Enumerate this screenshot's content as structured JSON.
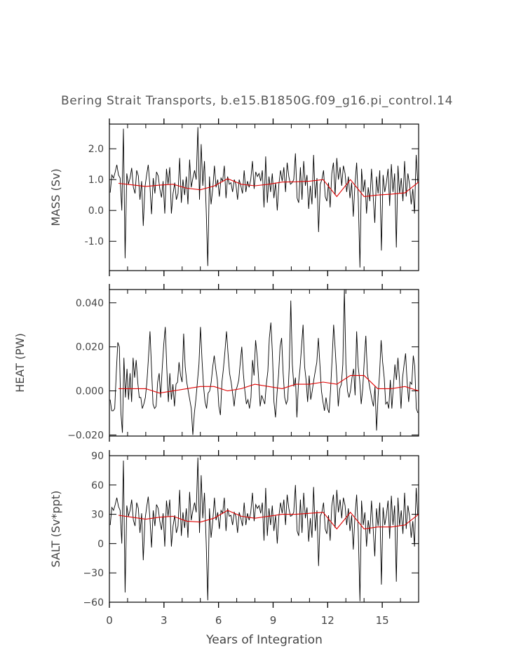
{
  "chart_data": {
    "type": "line",
    "title": "Bering Strait Transports, b.e15.B1850G.f09_g16.pi_control.14",
    "xlabel": "Years of Integration",
    "xlim": [
      0,
      17
    ],
    "xticks": [
      0,
      3,
      6,
      9,
      12,
      15
    ],
    "xtick_labels": [
      "0",
      "3",
      "6",
      "9",
      "12",
      "15"
    ],
    "colors": {
      "monthly": "#000000",
      "annual": "#e00000",
      "axis": "#000000",
      "text": "#444444"
    },
    "panels": [
      {
        "ylabel": "MASS (Sv)",
        "ylim": [
          -1.95,
          2.8
        ],
        "yticks": [
          -1.0,
          0.0,
          1.0,
          2.0
        ],
        "ytick_labels": [
          "-1.0",
          "0.0",
          "1.0",
          "2.0"
        ],
        "monthly": [
          0.58,
          1.15,
          1.05,
          1.25,
          1.48,
          1.15,
          1.05,
          0.0,
          2.65,
          -1.55,
          1.2,
          0.85,
          1.05,
          1.38,
          0.75,
          0.55,
          1.3,
          1.12,
          0.35,
          0.95,
          -0.5,
          0.75,
          1.15,
          1.48,
          0.8,
          -0.12,
          1.05,
          0.55,
          1.25,
          1.12,
          0.7,
          0.42,
          0.95,
          -0.1,
          1.35,
          0.85,
          1.4,
          -0.1,
          0.55,
          0.9,
          0.35,
          0.55,
          1.7,
          0.25,
          1.0,
          0.5,
          1.1,
          0.2,
          1.65,
          0.75,
          1.05,
          1.3,
          1.0,
          2.7,
          0.35,
          2.15,
          0.8,
          1.6,
          0.05,
          -1.8,
          1.1,
          0.2,
          0.7,
          1.45,
          0.75,
          1.0,
          0.45,
          1.05,
          0.95,
          1.45,
          0.4,
          1.1,
          0.85,
          0.9,
          0.6,
          1.0,
          0.85,
          0.35,
          1.0,
          0.8,
          0.55,
          1.3,
          0.6,
          0.95,
          0.75,
          1.0,
          1.6,
          0.7,
          1.25,
          1.1,
          1.2,
          0.95,
          1.3,
          0.1,
          1.75,
          0.25,
          1.1,
          0.6,
          1.2,
          0.4,
          0.9,
          0.0,
          0.85,
          1.3,
          0.95,
          1.4,
          0.6,
          1.55,
          1.1,
          0.85,
          0.9,
          1.0,
          1.85,
          0.4,
          0.25,
          1.4,
          0.35,
          1.6,
          0.8,
          1.15,
          0.05,
          0.8,
          0.2,
          1.8,
          0.4,
          1.05,
          -0.7,
          0.85,
          1.0,
          1.3,
          0.45,
          0.3,
          0.9,
          0.1,
          1.2,
          1.55,
          0.5,
          1.7,
          1.0,
          1.4,
          0.8,
          1.45,
          1.2,
          0.6,
          1.1,
          0.4,
          0.9,
          -0.2,
          0.85,
          1.55,
          0.4,
          -1.85,
          1.35,
          0.6,
          1.0,
          -0.1,
          0.75,
          0.3,
          1.35,
          0.5,
          -0.4,
          1.1,
          0.55,
          1.3,
          -1.3,
          1.15,
          0.6,
          0.9,
          1.35,
          0.15,
          1.5,
          0.6,
          1.2,
          -1.2,
          1.45,
          0.55,
          1.05,
          0.3,
          1.6,
          0.45,
          1.2,
          0.85,
          0.2,
          0.7,
          -0.1,
          1.8,
          0.9
        ],
        "annual": [
          0.88,
          0.83,
          0.78,
          0.82,
          0.85,
          0.72,
          0.67,
          0.79,
          1.03,
          0.85,
          0.8,
          0.85,
          0.92,
          0.93,
          0.95,
          1.0,
          0.45,
          1.0,
          0.45,
          0.5,
          0.53,
          0.57,
          0.92
        ]
      },
      {
        "ylabel": "HEAT (PW)",
        "ylim": [
          -0.0205,
          0.046
        ],
        "yticks": [
          -0.02,
          0.0,
          0.02,
          0.04
        ],
        "ytick_labels": [
          "−0.020",
          "0.000",
          "0.020",
          "0.040"
        ],
        "monthly": [
          -0.004,
          -0.009,
          -0.009,
          -0.008,
          0.008,
          0.022,
          0.02,
          -0.01,
          -0.019,
          0.015,
          -0.003,
          0.01,
          -0.004,
          0.008,
          -0.005,
          0.015,
          0.006,
          0.014,
          0.004,
          -0.003,
          -0.003,
          -0.008,
          -0.006,
          -0.003,
          0.004,
          0.015,
          0.027,
          0.011,
          -0.006,
          -0.008,
          -0.007,
          0.004,
          0.008,
          -0.003,
          0.01,
          0.021,
          0.029,
          0.01,
          -0.005,
          0.008,
          -0.004,
          0.003,
          -0.007,
          0.003,
          0.004,
          0.013,
          0.007,
          0.004,
          0.026,
          0.011,
          0.004,
          0.0,
          -0.004,
          -0.008,
          -0.02,
          -0.01,
          -0.004,
          0.004,
          0.012,
          0.029,
          0.014,
          0.002,
          -0.005,
          -0.008,
          -0.001,
          0.0,
          0.004,
          0.011,
          0.016,
          0.01,
          0.005,
          -0.007,
          -0.011,
          0.004,
          0.01,
          0.018,
          0.027,
          0.017,
          0.008,
          0.004,
          -0.001,
          -0.007,
          0.0,
          0.002,
          0.005,
          0.013,
          0.02,
          0.008,
          0.0,
          -0.006,
          -0.004,
          -0.008,
          -0.003,
          0.014,
          0.007,
          0.023,
          0.016,
          0.005,
          -0.007,
          -0.002,
          -0.004,
          -0.006,
          0.003,
          0.009,
          0.024,
          0.031,
          0.017,
          -0.005,
          -0.012,
          -0.001,
          0.007,
          0.02,
          0.024,
          0.008,
          -0.003,
          -0.006,
          -0.004,
          0.011,
          0.041,
          0.012,
          0.002,
          0.006,
          -0.012,
          0.003,
          0.01,
          0.02,
          0.03,
          0.011,
          0.005,
          -0.005,
          0.007,
          -0.004,
          0.0,
          0.005,
          0.009,
          0.013,
          0.024,
          0.012,
          0.0,
          -0.005,
          -0.009,
          -0.003,
          -0.008,
          -0.01,
          0.001,
          0.015,
          0.03,
          0.019,
          0.007,
          -0.007,
          0.001,
          0.003,
          0.012,
          0.046,
          0.012,
          0.0,
          -0.003,
          0.0,
          0.006,
          0.01,
          -0.002,
          0.027,
          0.011,
          0.005,
          -0.006,
          0.001,
          0.014,
          0.025,
          0.008,
          0.004,
          0.0,
          -0.004,
          -0.007,
          0.002,
          -0.018,
          -0.003,
          0.008,
          0.023,
          0.013,
          0.006,
          -0.006,
          -0.005,
          -0.008,
          0.005,
          -0.008,
          0.002,
          0.012,
          0.005,
          0.015,
          0.005,
          -0.008,
          0.006,
          0.012,
          0.017,
          0.004,
          -0.005,
          0.004,
          0.003,
          0.016,
          0.011,
          -0.008,
          -0.01
        ],
        "annual": [
          0.001,
          0.001,
          0.001,
          -0.001,
          0.0,
          0.001,
          0.002,
          0.002,
          0.0,
          0.001,
          0.003,
          0.002,
          0.001,
          0.003,
          0.003,
          0.004,
          0.003,
          0.007,
          0.007,
          0.001,
          0.001,
          0.002,
          0.0
        ]
      },
      {
        "ylabel": "SALT (Sv*ppt)",
        "ylim": [
          -60,
          90
        ],
        "yticks": [
          -60,
          -30,
          0,
          30,
          60,
          90
        ],
        "ytick_labels": [
          "−60",
          "−30",
          "0",
          "30",
          "60",
          "90"
        ],
        "monthly": [
          19,
          37,
          34,
          40,
          47,
          38,
          34,
          0,
          85,
          -50,
          39,
          28,
          34,
          45,
          24,
          18,
          42,
          36,
          11,
          31,
          -17,
          24,
          37,
          48,
          26,
          -4,
          34,
          18,
          40,
          36,
          23,
          14,
          31,
          -3,
          44,
          28,
          45,
          -3,
          18,
          29,
          11,
          18,
          55,
          8,
          32,
          16,
          36,
          6,
          53,
          24,
          34,
          42,
          32,
          88,
          11,
          70,
          26,
          52,
          2,
          -58,
          36,
          6,
          23,
          47,
          24,
          32,
          15,
          34,
          31,
          47,
          13,
          36,
          28,
          29,
          19,
          32,
          28,
          11,
          32,
          26,
          18,
          42,
          19,
          31,
          24,
          32,
          52,
          23,
          40,
          36,
          39,
          31,
          42,
          3,
          57,
          8,
          36,
          19,
          39,
          13,
          29,
          0,
          28,
          42,
          31,
          45,
          19,
          50,
          36,
          28,
          29,
          32,
          60,
          13,
          8,
          45,
          11,
          52,
          26,
          37,
          2,
          26,
          6,
          58,
          13,
          34,
          -23,
          28,
          32,
          42,
          15,
          10,
          29,
          3,
          39,
          50,
          16,
          55,
          32,
          45,
          26,
          47,
          39,
          19,
          36,
          13,
          29,
          -6,
          28,
          50,
          13,
          -59,
          44,
          19,
          32,
          -3,
          24,
          10,
          44,
          16,
          -13,
          36,
          18,
          42,
          -42,
          37,
          19,
          29,
          44,
          5,
          49,
          19,
          39,
          -39,
          47,
          18,
          34,
          10,
          52,
          15,
          39,
          28,
          6,
          23,
          -3,
          57,
          29
        ],
        "annual": [
          29,
          27,
          25,
          27,
          28,
          23,
          22,
          26,
          34,
          28,
          26,
          28,
          30,
          30,
          31,
          32,
          15,
          32,
          15,
          17,
          17,
          19,
          30
        ]
      }
    ]
  }
}
